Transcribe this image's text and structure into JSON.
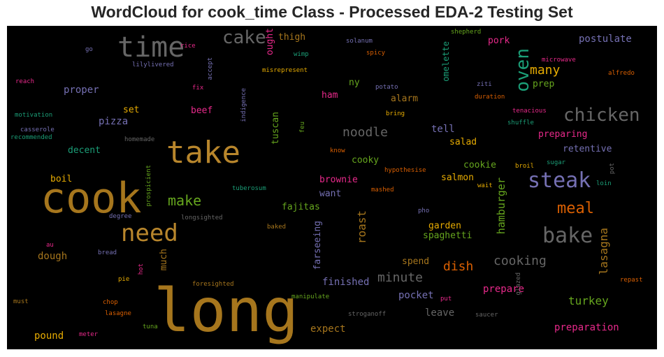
{
  "title": "WordCloud for cook_time Class - Processed EDA-2 Testing Set",
  "chart_data": {
    "type": "wordcloud",
    "background": "#000000",
    "palette": [
      "#b8862c",
      "#e6ab02",
      "#d95f02",
      "#e7298a",
      "#7570b3",
      "#1b9e77",
      "#66a61e",
      "#666666",
      "#a6761d"
    ],
    "words": [
      {
        "text": "long",
        "color": "#a6761d"
      },
      {
        "text": "cook",
        "color": "#a6761d"
      },
      {
        "text": "take",
        "color": "#b8862c"
      },
      {
        "text": "time",
        "color": "#666666"
      },
      {
        "text": "need",
        "color": "#b8862c"
      },
      {
        "text": "steak",
        "color": "#7570b3"
      },
      {
        "text": "bake",
        "color": "#666666"
      },
      {
        "text": "chicken",
        "color": "#666666"
      },
      {
        "text": "cake",
        "color": "#666666"
      },
      {
        "text": "oven",
        "color": "#1b9e77"
      },
      {
        "text": "meal",
        "color": "#d95f02"
      },
      {
        "text": "make",
        "color": "#66a61e"
      },
      {
        "text": "many",
        "color": "#e6ab02"
      },
      {
        "text": "minute",
        "color": "#666666"
      },
      {
        "text": "cooking",
        "color": "#666666"
      },
      {
        "text": "noodle",
        "color": "#666666"
      },
      {
        "text": "dish",
        "color": "#d95f02"
      },
      {
        "text": "turkey",
        "color": "#66a61e"
      },
      {
        "text": "roast",
        "color": "#a6761d"
      },
      {
        "text": "lasagna",
        "color": "#a6761d"
      },
      {
        "text": "hamburger",
        "color": "#66a61e"
      },
      {
        "text": "preparation",
        "color": "#e7298a"
      },
      {
        "text": "prepare",
        "color": "#e7298a"
      },
      {
        "text": "dough",
        "color": "#a6761d"
      },
      {
        "text": "finished",
        "color": "#7570b3"
      },
      {
        "text": "expect",
        "color": "#a6761d"
      },
      {
        "text": "pocket",
        "color": "#7570b3"
      },
      {
        "text": "leave",
        "color": "#666666"
      },
      {
        "text": "postulate",
        "color": "#7570b3"
      },
      {
        "text": "pizza",
        "color": "#7570b3"
      },
      {
        "text": "proper",
        "color": "#7570b3"
      },
      {
        "text": "tell",
        "color": "#7570b3"
      },
      {
        "text": "pound",
        "color": "#e6ab02"
      },
      {
        "text": "spend",
        "color": "#a6761d"
      },
      {
        "text": "salmon",
        "color": "#e6ab02"
      },
      {
        "text": "spaghetti",
        "color": "#66a61e"
      },
      {
        "text": "garden",
        "color": "#e6ab02"
      },
      {
        "text": "fajitas",
        "color": "#66a61e"
      },
      {
        "text": "brownie",
        "color": "#e7298a"
      },
      {
        "text": "want",
        "color": "#7570b3"
      },
      {
        "text": "cooky",
        "color": "#66a61e"
      },
      {
        "text": "cookie",
        "color": "#66a61e"
      },
      {
        "text": "salad",
        "color": "#e6ab02"
      },
      {
        "text": "preparing",
        "color": "#e7298a"
      },
      {
        "text": "retentive",
        "color": "#7570b3"
      },
      {
        "text": "decent",
        "color": "#1b9e77"
      },
      {
        "text": "boil",
        "color": "#e6ab02"
      },
      {
        "text": "beef",
        "color": "#e7298a"
      },
      {
        "text": "set",
        "color": "#e6ab02"
      },
      {
        "text": "ham",
        "color": "#e7298a"
      },
      {
        "text": "alarm",
        "color": "#a6761d"
      },
      {
        "text": "prep",
        "color": "#66a61e"
      },
      {
        "text": "pork",
        "color": "#e7298a"
      },
      {
        "text": "ny",
        "color": "#66a61e"
      },
      {
        "text": "thigh",
        "color": "#a6761d"
      },
      {
        "text": "ought",
        "color": "#e7298a"
      },
      {
        "text": "tuscan",
        "color": "#66a61e"
      },
      {
        "text": "omelette",
        "color": "#1b9e77"
      },
      {
        "text": "farseeing",
        "color": "#7570b3"
      },
      {
        "text": "much",
        "color": "#a6761d"
      },
      {
        "text": "misrepresent",
        "color": "#e6ab02"
      },
      {
        "text": "manipulate",
        "color": "#66a61e"
      },
      {
        "text": "stroganoff",
        "color": "#666666"
      },
      {
        "text": "saucer",
        "color": "#666666"
      },
      {
        "text": "put",
        "color": "#e7298a"
      },
      {
        "text": "glazed",
        "color": "#666666"
      },
      {
        "text": "repast",
        "color": "#d95f02"
      },
      {
        "text": "tuna",
        "color": "#66a61e"
      },
      {
        "text": "chop",
        "color": "#d95f02"
      },
      {
        "text": "lasagne",
        "color": "#d95f02"
      },
      {
        "text": "meter",
        "color": "#e7298a"
      },
      {
        "text": "must",
        "color": "#a6761d"
      },
      {
        "text": "pie",
        "color": "#e6ab02"
      },
      {
        "text": "hot",
        "color": "#e7298a"
      },
      {
        "text": "foresighted",
        "color": "#a6761d"
      },
      {
        "text": "bread",
        "color": "#7570b3"
      },
      {
        "text": "au",
        "color": "#e7298a"
      },
      {
        "text": "degree",
        "color": "#7570b3"
      },
      {
        "text": "longsighted",
        "color": "#666666"
      },
      {
        "text": "baked",
        "color": "#a6761d"
      },
      {
        "text": "pho",
        "color": "#7570b3"
      },
      {
        "text": "mashed",
        "color": "#d95f02"
      },
      {
        "text": "wait",
        "color": "#e6ab02"
      },
      {
        "text": "broil",
        "color": "#e6ab02"
      },
      {
        "text": "sugar",
        "color": "#1b9e77"
      },
      {
        "text": "loin",
        "color": "#1b9e77"
      },
      {
        "text": "pot",
        "color": "#666666"
      },
      {
        "text": "hypothesise",
        "color": "#d95f02"
      },
      {
        "text": "know",
        "color": "#d95f02"
      },
      {
        "text": "tuberosum",
        "color": "#1b9e77"
      },
      {
        "text": "prospicient",
        "color": "#66a61e"
      },
      {
        "text": "homemade",
        "color": "#666666"
      },
      {
        "text": "recommended",
        "color": "#1b9e77"
      },
      {
        "text": "casserole",
        "color": "#7570b3"
      },
      {
        "text": "motivation",
        "color": "#1b9e77"
      },
      {
        "text": "reach",
        "color": "#e7298a"
      },
      {
        "text": "go",
        "color": "#7570b3"
      },
      {
        "text": "rice",
        "color": "#e7298a"
      },
      {
        "text": "lilylivered",
        "color": "#7570b3"
      },
      {
        "text": "fix",
        "color": "#e7298a"
      },
      {
        "text": "accept",
        "color": "#7570b3"
      },
      {
        "text": "indigence",
        "color": "#7570b3"
      },
      {
        "text": "feu",
        "color": "#66a61e"
      },
      {
        "text": "solanum",
        "color": "#7570b3"
      },
      {
        "text": "wimp",
        "color": "#1b9e77"
      },
      {
        "text": "spicy",
        "color": "#d95f02"
      },
      {
        "text": "potato",
        "color": "#7570b3"
      },
      {
        "text": "bring",
        "color": "#e6ab02"
      },
      {
        "text": "shepherd",
        "color": "#66a61e"
      },
      {
        "text": "microwave",
        "color": "#e7298a"
      },
      {
        "text": "alfredo",
        "color": "#d95f02"
      },
      {
        "text": "ziti",
        "color": "#7570b3"
      },
      {
        "text": "duration",
        "color": "#d95f02"
      },
      {
        "text": "tenacious",
        "color": "#e7298a"
      },
      {
        "text": "shuffle",
        "color": "#1b9e77"
      }
    ]
  }
}
